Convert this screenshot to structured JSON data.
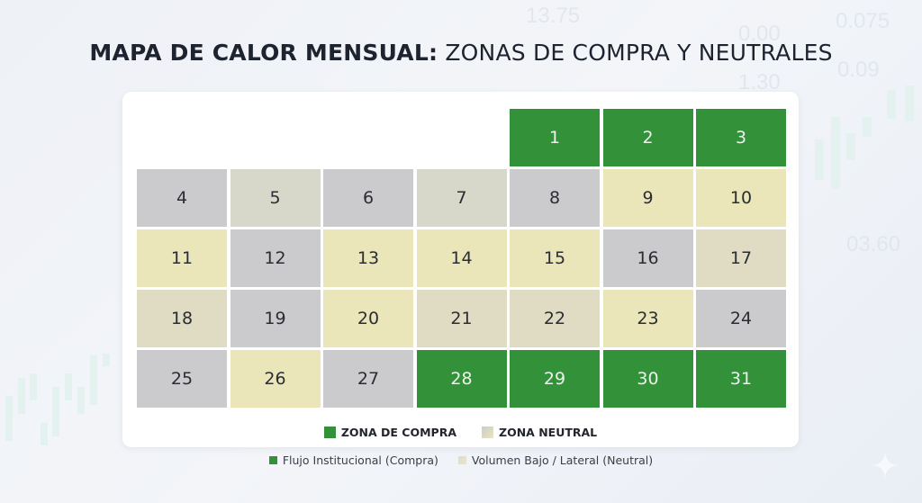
{
  "title": {
    "bold": "MAPA DE CALOR MENSUAL:",
    "light": "ZONAS DE COMPRA Y NEUTRALES"
  },
  "background_numbers": [
    "13.75",
    "0.00",
    "0.075",
    "1.30",
    "0.09",
    "03.60"
  ],
  "colors": {
    "buy": "#33913a",
    "neutral_gray": "#cbcbcd",
    "neutral_graybeige": "#d7d7ca",
    "neutral_yellow": "#ebe6b9",
    "neutral_beige": "#e0dcc4"
  },
  "calendar": {
    "leading_empty": 4,
    "days": [
      {
        "day": "1",
        "zone": "green"
      },
      {
        "day": "2",
        "zone": "green"
      },
      {
        "day": "3",
        "zone": "green"
      },
      {
        "day": "4",
        "zone": "gray"
      },
      {
        "day": "5",
        "zone": "graybeige"
      },
      {
        "day": "6",
        "zone": "gray"
      },
      {
        "day": "7",
        "zone": "graybeige"
      },
      {
        "day": "8",
        "zone": "gray"
      },
      {
        "day": "9",
        "zone": "yellow"
      },
      {
        "day": "10",
        "zone": "yellow"
      },
      {
        "day": "11",
        "zone": "yellow"
      },
      {
        "day": "12",
        "zone": "gray"
      },
      {
        "day": "13",
        "zone": "yellow"
      },
      {
        "day": "14",
        "zone": "yellow"
      },
      {
        "day": "15",
        "zone": "yellow"
      },
      {
        "day": "16",
        "zone": "gray"
      },
      {
        "day": "17",
        "zone": "beige"
      },
      {
        "day": "18",
        "zone": "beige"
      },
      {
        "day": "19",
        "zone": "gray"
      },
      {
        "day": "20",
        "zone": "yellow"
      },
      {
        "day": "21",
        "zone": "beige"
      },
      {
        "day": "22",
        "zone": "beige"
      },
      {
        "day": "23",
        "zone": "yellow"
      },
      {
        "day": "24",
        "zone": "gray"
      },
      {
        "day": "25",
        "zone": "gray"
      },
      {
        "day": "26",
        "zone": "yellow"
      },
      {
        "day": "27",
        "zone": "gray"
      },
      {
        "day": "28",
        "zone": "green"
      },
      {
        "day": "29",
        "zone": "green"
      },
      {
        "day": "30",
        "zone": "green"
      },
      {
        "day": "31",
        "zone": "green"
      }
    ]
  },
  "legend": {
    "buy": "ZONA DE COMPRA",
    "neutral": "ZONA NEUTRAL"
  },
  "sublegend": {
    "buy": "Flujo Institucional (Compra)",
    "neutral": "Volumen Bajo / Lateral (Neutral)"
  },
  "chart_data": {
    "type": "heatmap",
    "title": "MAPA DE CALOR MENSUAL: ZONAS DE COMPRA Y NEUTRALES",
    "layout": "calendar 7 columns, month starts on 5th column",
    "categories": [
      "Zona de Compra",
      "Zona Neutral"
    ],
    "days": [
      1,
      2,
      3,
      4,
      5,
      6,
      7,
      8,
      9,
      10,
      11,
      12,
      13,
      14,
      15,
      16,
      17,
      18,
      19,
      20,
      21,
      22,
      23,
      24,
      25,
      26,
      27,
      28,
      29,
      30,
      31
    ],
    "values": [
      "Compra",
      "Compra",
      "Compra",
      "Neutral",
      "Neutral",
      "Neutral",
      "Neutral",
      "Neutral",
      "Neutral",
      "Neutral",
      "Neutral",
      "Neutral",
      "Neutral",
      "Neutral",
      "Neutral",
      "Neutral",
      "Neutral",
      "Neutral",
      "Neutral",
      "Neutral",
      "Neutral",
      "Neutral",
      "Neutral",
      "Neutral",
      "Neutral",
      "Neutral",
      "Neutral",
      "Compra",
      "Compra",
      "Compra",
      "Compra"
    ],
    "buy_days": [
      1,
      2,
      3,
      28,
      29,
      30,
      31
    ],
    "neutral_days": [
      4,
      5,
      6,
      7,
      8,
      9,
      10,
      11,
      12,
      13,
      14,
      15,
      16,
      17,
      18,
      19,
      20,
      21,
      22,
      23,
      24,
      25,
      26,
      27
    ],
    "legend": [
      "ZONA DE COMPRA",
      "ZONA NEUTRAL"
    ],
    "legend_position": "bottom",
    "notes": [
      "Flujo Institucional (Compra)",
      "Volumen Bajo / Lateral (Neutral)"
    ]
  }
}
